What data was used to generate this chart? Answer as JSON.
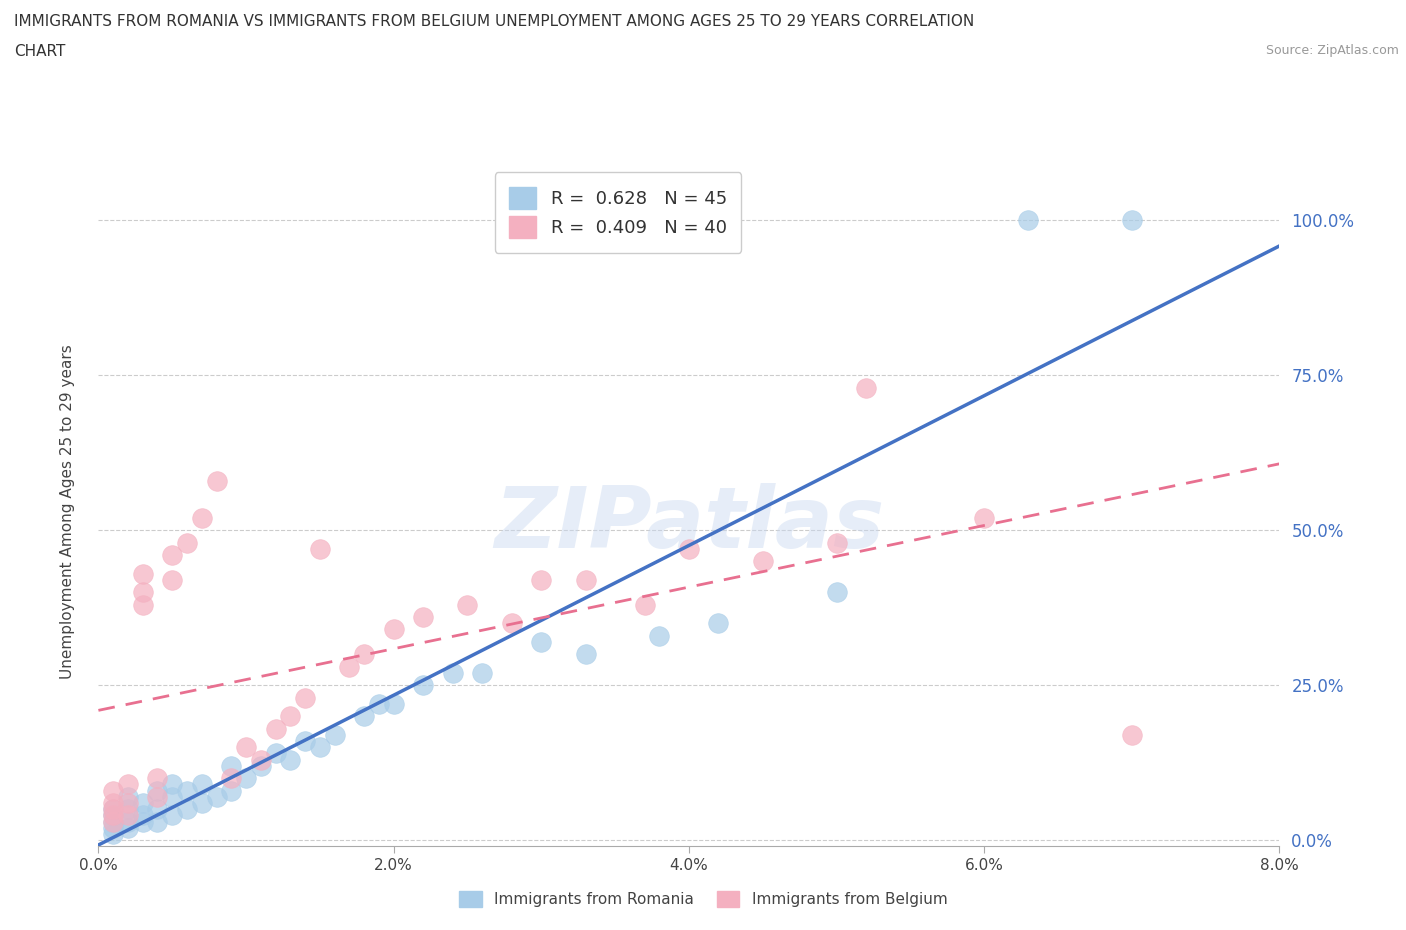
{
  "title_line1": "IMMIGRANTS FROM ROMANIA VS IMMIGRANTS FROM BELGIUM UNEMPLOYMENT AMONG AGES 25 TO 29 YEARS CORRELATION",
  "title_line2": "CHART",
  "source_text": "Source: ZipAtlas.com",
  "ylabel": "Unemployment Among Ages 25 to 29 years",
  "xlim": [
    0.0,
    0.08
  ],
  "ylim": [
    -0.01,
    1.07
  ],
  "xtick_labels": [
    "0.0%",
    "2.0%",
    "4.0%",
    "6.0%",
    "8.0%"
  ],
  "xtick_values": [
    0.0,
    0.02,
    0.04,
    0.06,
    0.08
  ],
  "ytick_labels": [
    "0.0%",
    "25.0%",
    "50.0%",
    "75.0%",
    "100.0%"
  ],
  "ytick_values": [
    0.0,
    0.25,
    0.5,
    0.75,
    1.0
  ],
  "romania_color": "#a8cce8",
  "belgium_color": "#f4b0c0",
  "romania_line_color": "#4472c4",
  "belgium_line_color": "#e87090",
  "ytick_color": "#4472c4",
  "watermark_text": "ZIPatlas",
  "romania_r": 0.628,
  "romania_n": 45,
  "belgium_r": 0.409,
  "belgium_n": 40,
  "romania_scatter_x": [
    0.001,
    0.001,
    0.001,
    0.001,
    0.001,
    0.002,
    0.002,
    0.002,
    0.002,
    0.003,
    0.003,
    0.003,
    0.004,
    0.004,
    0.004,
    0.005,
    0.005,
    0.005,
    0.006,
    0.006,
    0.007,
    0.007,
    0.008,
    0.009,
    0.009,
    0.01,
    0.011,
    0.012,
    0.013,
    0.014,
    0.015,
    0.016,
    0.018,
    0.019,
    0.02,
    0.022,
    0.024,
    0.026,
    0.03,
    0.033,
    0.038,
    0.042,
    0.05,
    0.063,
    0.07
  ],
  "romania_scatter_y": [
    0.01,
    0.02,
    0.03,
    0.04,
    0.05,
    0.02,
    0.03,
    0.05,
    0.07,
    0.03,
    0.04,
    0.06,
    0.03,
    0.05,
    0.08,
    0.04,
    0.07,
    0.09,
    0.05,
    0.08,
    0.06,
    0.09,
    0.07,
    0.08,
    0.12,
    0.1,
    0.12,
    0.14,
    0.13,
    0.16,
    0.15,
    0.17,
    0.2,
    0.22,
    0.22,
    0.25,
    0.27,
    0.27,
    0.32,
    0.3,
    0.33,
    0.35,
    0.4,
    1.0,
    1.0
  ],
  "belgium_scatter_x": [
    0.001,
    0.001,
    0.001,
    0.001,
    0.001,
    0.002,
    0.002,
    0.002,
    0.003,
    0.003,
    0.003,
    0.004,
    0.004,
    0.005,
    0.005,
    0.006,
    0.007,
    0.008,
    0.009,
    0.01,
    0.011,
    0.012,
    0.013,
    0.014,
    0.015,
    0.017,
    0.018,
    0.02,
    0.022,
    0.025,
    0.028,
    0.03,
    0.033,
    0.037,
    0.04,
    0.045,
    0.05,
    0.052,
    0.06,
    0.07
  ],
  "belgium_scatter_y": [
    0.03,
    0.04,
    0.05,
    0.06,
    0.08,
    0.04,
    0.06,
    0.09,
    0.38,
    0.4,
    0.43,
    0.07,
    0.1,
    0.42,
    0.46,
    0.48,
    0.52,
    0.58,
    0.1,
    0.15,
    0.13,
    0.18,
    0.2,
    0.23,
    0.47,
    0.28,
    0.3,
    0.34,
    0.36,
    0.38,
    0.35,
    0.42,
    0.42,
    0.38,
    0.47,
    0.45,
    0.48,
    0.73,
    0.52,
    0.17
  ],
  "background_color": "#ffffff",
  "grid_color": "#cccccc",
  "legend_box_color": "#f0f4ff",
  "legend_text_color": "#333333",
  "legend_value_color": "#4472c4"
}
